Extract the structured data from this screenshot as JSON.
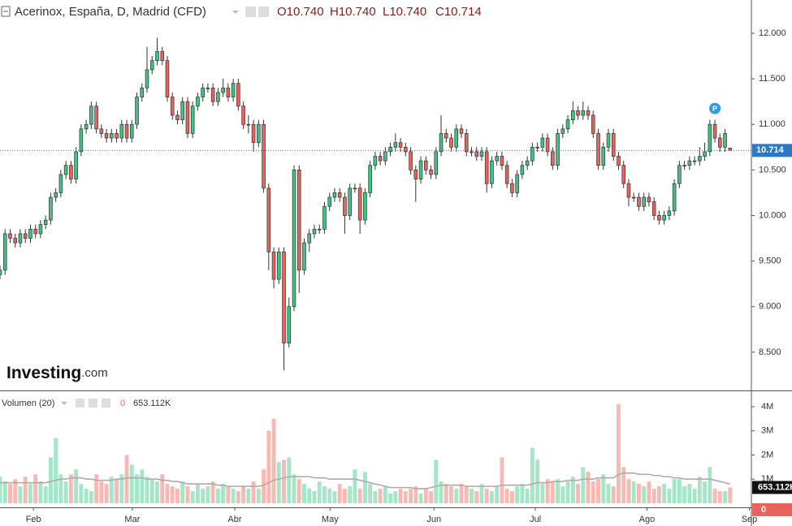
{
  "chart_data": {
    "type": "candlestick",
    "title": "Acerinox, España, D, Madrid (CFD)",
    "ohlc_header": [
      "O10.740",
      "H10.740",
      "L10.740",
      "C10.714"
    ],
    "brand": [
      "Investing",
      ".com"
    ],
    "annotation": "P",
    "up_color": "#3fc283",
    "down_color": "#e9635b",
    "volume_up_color": "#a3e6c8",
    "volume_down_color": "#f8b9b2",
    "ma_color": "#b4a7a7",
    "price_line_color": "#2b78c5",
    "open": [
      9.35,
      9.4,
      9.8,
      9.75,
      9.7,
      9.8,
      9.75,
      9.85,
      9.8,
      9.9,
      9.95,
      10.2,
      10.25,
      10.45,
      10.55,
      10.4,
      10.7,
      10.95,
      11.0,
      11.2,
      10.95,
      10.9,
      10.85,
      10.9,
      10.85,
      11.0,
      10.85,
      11.0,
      11.3,
      11.4,
      11.6,
      11.7,
      11.8,
      11.7,
      11.3,
      11.1,
      11.05,
      11.25,
      10.9,
      11.2,
      11.3,
      11.4,
      11.4,
      11.25,
      11.35,
      11.4,
      11.3,
      11.45,
      11.2,
      11.0,
      11.0,
      10.8,
      11.0,
      10.3,
      9.6,
      9.3,
      9.6,
      8.6,
      9.0,
      10.5,
      9.4,
      9.7,
      9.8,
      9.85,
      9.85,
      10.1,
      10.2,
      10.25,
      10.2,
      10.0,
      10.3,
      10.3,
      9.95,
      10.25,
      10.55,
      10.65,
      10.6,
      10.7,
      10.75,
      10.8,
      10.75,
      10.7,
      10.5,
      10.4,
      10.6,
      10.5,
      10.45,
      10.7,
      10.9,
      10.85,
      10.75,
      10.95,
      10.9,
      10.7,
      10.7,
      10.65,
      10.7,
      10.35,
      10.6,
      10.65,
      10.55,
      10.35,
      10.25,
      10.45,
      10.55,
      10.6,
      10.75,
      10.75,
      10.85,
      10.7,
      10.55,
      10.9,
      10.95,
      11.05,
      11.15,
      11.1,
      11.15,
      11.1,
      10.9,
      10.55,
      10.75,
      10.9,
      10.65,
      10.55,
      10.35,
      10.2,
      10.2,
      10.1,
      10.2,
      10.15,
      10.0,
      9.95,
      10.0,
      10.05,
      10.35,
      10.55,
      10.55,
      10.6,
      10.6,
      10.65,
      10.7,
      11.0,
      10.85,
      10.75,
      10.74
    ],
    "high": [
      9.45,
      9.85,
      9.85,
      9.8,
      9.85,
      9.85,
      9.9,
      9.9,
      9.95,
      10.0,
      10.25,
      10.3,
      10.5,
      10.6,
      10.6,
      10.75,
      11.0,
      11.05,
      11.25,
      11.25,
      11.0,
      10.95,
      10.95,
      10.95,
      11.05,
      11.05,
      11.05,
      11.35,
      11.45,
      11.85,
      11.75,
      11.95,
      11.85,
      11.75,
      11.35,
      11.15,
      11.3,
      11.3,
      11.25,
      11.35,
      11.45,
      11.45,
      11.45,
      11.4,
      11.5,
      11.45,
      11.5,
      11.5,
      11.25,
      11.1,
      11.05,
      11.05,
      11.05,
      10.35,
      9.65,
      9.65,
      9.65,
      9.1,
      10.55,
      10.55,
      9.75,
      9.85,
      9.9,
      9.9,
      10.15,
      10.25,
      10.3,
      10.3,
      10.25,
      10.35,
      10.35,
      10.35,
      10.3,
      10.6,
      10.7,
      10.7,
      10.75,
      10.8,
      10.9,
      10.85,
      10.8,
      10.75,
      10.55,
      10.65,
      10.65,
      10.55,
      10.75,
      11.1,
      10.95,
      10.9,
      11.0,
      11.0,
      10.95,
      10.75,
      10.75,
      10.75,
      10.75,
      10.65,
      10.7,
      10.7,
      10.6,
      10.4,
      10.5,
      10.6,
      10.65,
      10.8,
      10.8,
      10.9,
      10.9,
      10.75,
      10.95,
      11.0,
      11.1,
      11.25,
      11.2,
      11.25,
      11.2,
      11.15,
      10.95,
      10.8,
      10.95,
      10.95,
      10.7,
      10.6,
      10.4,
      10.25,
      10.25,
      10.25,
      10.25,
      10.2,
      10.05,
      10.05,
      10.1,
      10.4,
      10.6,
      10.6,
      10.65,
      10.65,
      10.75,
      10.8,
      11.05,
      11.05,
      10.9,
      10.95,
      10.74
    ],
    "low": [
      9.3,
      9.35,
      9.7,
      9.65,
      9.65,
      9.7,
      9.7,
      9.75,
      9.75,
      9.85,
      9.9,
      10.15,
      10.2,
      10.4,
      10.35,
      10.35,
      10.65,
      10.9,
      10.95,
      10.9,
      10.85,
      10.8,
      10.8,
      10.8,
      10.8,
      10.8,
      10.8,
      10.95,
      11.25,
      11.35,
      11.55,
      11.65,
      11.65,
      11.25,
      11.05,
      11.0,
      11.0,
      10.85,
      10.85,
      11.15,
      11.25,
      11.35,
      11.2,
      11.2,
      11.3,
      11.25,
      11.25,
      11.15,
      10.95,
      10.9,
      10.7,
      10.75,
      10.25,
      9.4,
      9.2,
      9.25,
      8.3,
      8.55,
      8.95,
      9.15,
      9.35,
      9.6,
      9.75,
      9.8,
      9.8,
      10.05,
      10.15,
      10.15,
      9.8,
      9.95,
      10.25,
      9.8,
      9.9,
      10.2,
      10.5,
      10.55,
      10.55,
      10.65,
      10.7,
      10.7,
      10.65,
      10.45,
      10.15,
      10.35,
      10.45,
      10.4,
      10.4,
      10.65,
      10.8,
      10.7,
      10.7,
      10.85,
      10.65,
      10.65,
      10.6,
      10.6,
      10.25,
      10.3,
      10.55,
      10.5,
      10.3,
      10.2,
      10.2,
      10.4,
      10.5,
      10.55,
      10.7,
      10.7,
      10.65,
      10.5,
      10.5,
      10.85,
      10.9,
      11.0,
      11.05,
      11.05,
      11.05,
      10.85,
      10.5,
      10.5,
      10.7,
      10.6,
      10.5,
      10.3,
      10.1,
      10.15,
      10.05,
      10.05,
      10.1,
      9.95,
      9.9,
      9.9,
      9.95,
      10.0,
      10.3,
      10.5,
      10.5,
      10.55,
      10.55,
      10.6,
      10.65,
      10.8,
      10.7,
      10.7,
      10.714
    ],
    "close": [
      9.4,
      9.8,
      9.75,
      9.7,
      9.8,
      9.75,
      9.85,
      9.8,
      9.9,
      9.95,
      10.2,
      10.25,
      10.45,
      10.55,
      10.4,
      10.7,
      10.95,
      11.0,
      11.2,
      10.95,
      10.9,
      10.85,
      10.9,
      10.85,
      11.0,
      10.85,
      11.0,
      11.3,
      11.4,
      11.6,
      11.7,
      11.8,
      11.7,
      11.3,
      11.1,
      11.05,
      11.25,
      10.9,
      11.2,
      11.3,
      11.4,
      11.4,
      11.25,
      11.35,
      11.4,
      11.3,
      11.45,
      11.2,
      11.0,
      11.0,
      10.8,
      11.0,
      10.3,
      9.6,
      9.3,
      9.6,
      8.6,
      9.0,
      10.5,
      9.4,
      9.7,
      9.8,
      9.85,
      9.85,
      10.1,
      10.2,
      10.25,
      10.2,
      10.0,
      10.3,
      10.3,
      9.95,
      10.25,
      10.55,
      10.65,
      10.6,
      10.7,
      10.75,
      10.8,
      10.75,
      10.7,
      10.5,
      10.4,
      10.6,
      10.5,
      10.45,
      10.7,
      10.9,
      10.85,
      10.75,
      10.95,
      10.9,
      10.7,
      10.7,
      10.65,
      10.7,
      10.35,
      10.6,
      10.65,
      10.55,
      10.35,
      10.25,
      10.45,
      10.55,
      10.6,
      10.75,
      10.75,
      10.85,
      10.7,
      10.55,
      10.9,
      10.95,
      11.05,
      11.15,
      11.1,
      11.15,
      11.1,
      10.9,
      10.55,
      10.75,
      10.9,
      10.65,
      10.55,
      10.35,
      10.2,
      10.2,
      10.1,
      10.2,
      10.15,
      10.0,
      9.95,
      10.0,
      10.05,
      10.35,
      10.55,
      10.55,
      10.6,
      10.6,
      10.65,
      10.7,
      11.0,
      10.85,
      10.75,
      10.9,
      10.714
    ],
    "volume": [
      1.1,
      0.9,
      0.8,
      1.0,
      0.7,
      1.1,
      0.8,
      1.2,
      0.9,
      0.7,
      1.9,
      2.7,
      1.2,
      0.9,
      1.2,
      1.4,
      0.8,
      0.6,
      0.5,
      1.2,
      0.9,
      0.8,
      1.1,
      1.0,
      1.2,
      2.0,
      1.6,
      1.2,
      1.4,
      1.1,
      1.0,
      0.9,
      1.2,
      0.8,
      0.7,
      0.6,
      0.9,
      0.7,
      0.5,
      0.8,
      0.6,
      0.7,
      0.9,
      0.6,
      0.8,
      0.7,
      0.6,
      0.5,
      0.7,
      0.6,
      0.9,
      0.6,
      1.4,
      3.0,
      3.5,
      1.7,
      1.8,
      1.9,
      1.2,
      1.0,
      0.8,
      0.6,
      0.5,
      0.9,
      0.7,
      0.6,
      0.5,
      0.8,
      0.6,
      0.7,
      1.4,
      0.6,
      1.3,
      0.8,
      0.5,
      0.6,
      0.7,
      0.4,
      0.5,
      0.6,
      0.5,
      0.6,
      0.7,
      0.4,
      0.6,
      0.5,
      1.8,
      0.9,
      0.8,
      0.7,
      0.6,
      0.8,
      0.7,
      0.6,
      0.5,
      0.8,
      0.6,
      0.5,
      0.7,
      1.9,
      0.6,
      0.5,
      0.7,
      0.8,
      0.6,
      2.3,
      1.8,
      0.8,
      1.0,
      0.9,
      1.0,
      0.7,
      0.9,
      1.1,
      0.8,
      1.5,
      1.3,
      0.9,
      1.0,
      1.2,
      0.8,
      0.7,
      4.1,
      1.5,
      1.0,
      0.9,
      0.8,
      0.7,
      0.9,
      0.6,
      0.7,
      0.8,
      0.6,
      1.0,
      1.0,
      0.7,
      0.8,
      0.6,
      1.1,
      0.9,
      1.5,
      0.6,
      0.5,
      0.5,
      0.653112
    ],
    "volume_ma": [
      0.85,
      0.85,
      0.85,
      0.85,
      0.85,
      0.85,
      0.85,
      0.85,
      0.85,
      0.85,
      0.9,
      0.95,
      1.0,
      1.0,
      1.05,
      1.05,
      1.05,
      1.0,
      1.0,
      0.95,
      0.95,
      0.95,
      0.95,
      1.0,
      1.0,
      1.05,
      1.05,
      1.05,
      1.05,
      1.0,
      1.0,
      1.0,
      0.95,
      0.95,
      0.9,
      0.9,
      0.85,
      0.8,
      0.8,
      0.8,
      0.8,
      0.8,
      0.8,
      0.75,
      0.75,
      0.7,
      0.7,
      0.7,
      0.7,
      0.7,
      0.7,
      0.7,
      0.75,
      0.85,
      0.95,
      1.0,
      1.05,
      1.1,
      1.1,
      1.1,
      1.1,
      1.1,
      1.05,
      1.05,
      1.05,
      1.0,
      1.0,
      1.0,
      1.0,
      1.0,
      1.0,
      0.95,
      0.9,
      0.85,
      0.8,
      0.75,
      0.7,
      0.65,
      0.65,
      0.65,
      0.65,
      0.65,
      0.6,
      0.6,
      0.6,
      0.65,
      0.7,
      0.75,
      0.75,
      0.75,
      0.75,
      0.75,
      0.7,
      0.7,
      0.7,
      0.7,
      0.7,
      0.7,
      0.7,
      0.75,
      0.75,
      0.75,
      0.75,
      0.75,
      0.75,
      0.8,
      0.85,
      0.85,
      0.85,
      0.9,
      0.9,
      0.9,
      0.95,
      0.95,
      0.95,
      1.0,
      1.0,
      1.0,
      1.05,
      1.05,
      1.05,
      1.05,
      1.2,
      1.25,
      1.25,
      1.25,
      1.2,
      1.2,
      1.2,
      1.15,
      1.15,
      1.1,
      1.1,
      1.05,
      1.05,
      1.0,
      1.0,
      1.0,
      1.0,
      1.0,
      1.0,
      0.95,
      0.9,
      0.85,
      0.8
    ],
    "volume_legend": [
      "Volumen (20)",
      "0",
      "653.112K"
    ],
    "xlim": [
      0,
      148.2
    ],
    "xticks": [
      {
        "value": 6.6,
        "label": "Feb"
      },
      {
        "value": 26.1,
        "label": "Mar"
      },
      {
        "value": 46.3,
        "label": "Abr"
      },
      {
        "value": 65.1,
        "label": "May"
      },
      {
        "value": 85.6,
        "label": "Jun"
      },
      {
        "value": 105.6,
        "label": "Jul"
      },
      {
        "value": 127.6,
        "label": "Ago"
      },
      {
        "value": 147.8,
        "label": "Sep"
      }
    ],
    "ylim": [
      8.08,
      12.365
    ],
    "yticks": [
      {
        "value": 8.5,
        "label": "8.500"
      },
      {
        "value": 9,
        "label": "9.000"
      },
      {
        "value": 9.5,
        "label": "9.500"
      },
      {
        "value": 10,
        "label": "10.000"
      },
      {
        "value": 10.5,
        "label": "10.500"
      },
      {
        "value": 11,
        "label": "11.000"
      },
      {
        "value": 11.5,
        "label": "11.500"
      },
      {
        "value": 12,
        "label": "12.000"
      }
    ],
    "y2lim": [
      -0.17,
      4.64
    ],
    "y2ticks": [
      {
        "value": 1,
        "label": "1M"
      },
      {
        "value": 2,
        "label": "2M"
      },
      {
        "value": 3,
        "label": "3M"
      },
      {
        "value": 4,
        "label": "4M"
      }
    ]
  }
}
